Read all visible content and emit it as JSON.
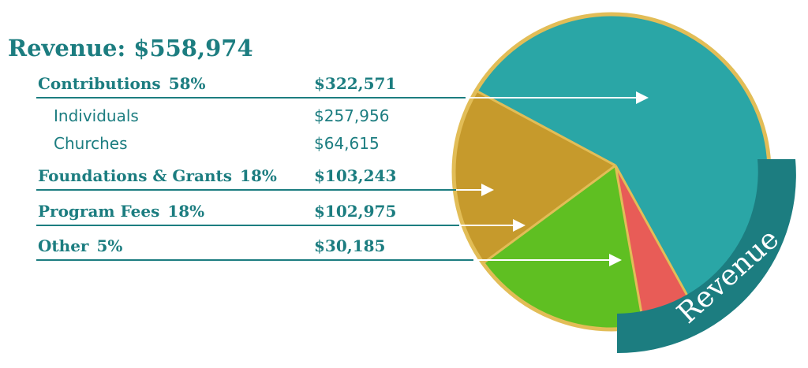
{
  "title": "Revenue: $558,974",
  "badge_label": "Revenue",
  "colors": {
    "teal": "#1c7d80",
    "gold": "#e2bd57",
    "contributions": "#2aa6a6",
    "foundations": "#c69a2c",
    "program_fees": "#5fbf22",
    "other": "#e85c57"
  },
  "chart_data": {
    "type": "pie",
    "title": "Revenue: $558,974",
    "slices": [
      {
        "label": "Contributions",
        "percent": "58%",
        "value": 322571,
        "amount": "$322,571",
        "color": "#2aa6a6",
        "children": [
          {
            "label": "Individuals",
            "amount": "$257,956",
            "value": 257956
          },
          {
            "label": "Churches",
            "amount": "$64,615",
            "value": 64615
          }
        ]
      },
      {
        "label": "Foundations & Grants",
        "percent": "18%",
        "value": 103243,
        "amount": "$103,243",
        "color": "#c69a2c"
      },
      {
        "label": "Program Fees",
        "percent": "18%",
        "value": 102975,
        "amount": "$102,975",
        "color": "#5fbf22"
      },
      {
        "label": "Other",
        "percent": "5%",
        "value": 30185,
        "amount": "$30,185",
        "color": "#e85c57"
      }
    ]
  }
}
